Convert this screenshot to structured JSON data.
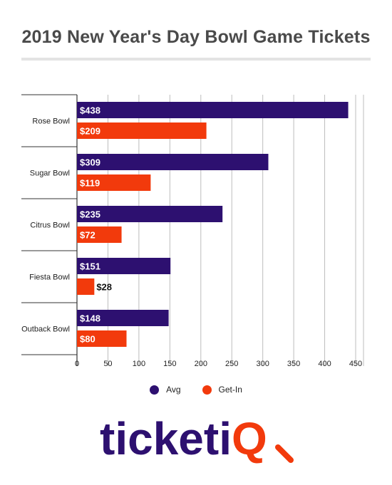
{
  "colors": {
    "avg": "#2d1070",
    "getin": "#f23a0c",
    "grid": "#bdbdbd",
    "axis": "#333333",
    "logo_text": "#2d1070",
    "logo_accent": "#f23a0c"
  },
  "chart_data": {
    "type": "bar",
    "orientation": "horizontal",
    "title": "2019 New Year's Day Bowl Game Tickets",
    "categories": [
      "Rose Bowl",
      "Sugar Bowl",
      "Citrus Bowl",
      "Fiesta Bowl",
      "Outback Bowl"
    ],
    "series": [
      {
        "name": "Avg",
        "values": [
          438,
          309,
          235,
          151,
          148
        ],
        "labels": [
          "$438",
          "$309",
          "$235",
          "$151",
          "$148"
        ]
      },
      {
        "name": "Get-In",
        "values": [
          209,
          119,
          72,
          28,
          80
        ],
        "labels": [
          "$209",
          "$119",
          "$72",
          "$28",
          "$80"
        ]
      }
    ],
    "xlim": [
      0,
      450
    ],
    "xticks": [
      0,
      50,
      100,
      150,
      200,
      250,
      300,
      350,
      400,
      450
    ],
    "xtick_labels": [
      "0",
      "50",
      "100",
      "150",
      "200",
      "250",
      "300",
      "350",
      "400",
      "450"
    ],
    "grid": true,
    "legend": "bottom-center"
  },
  "logo": {
    "text": "ticketiQ",
    "part1": "ticketi",
    "part2": "Q"
  }
}
